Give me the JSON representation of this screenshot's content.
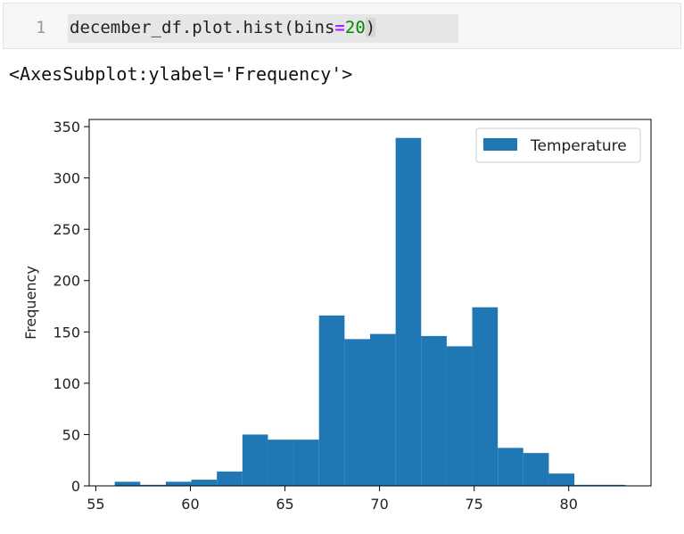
{
  "code_cell": {
    "line_number": "1",
    "code_parts": {
      "prefix": "december_df.plot.hist(bins",
      "equals": "=",
      "number": "20",
      "suffix": ")"
    }
  },
  "output": {
    "repr": "<AxesSubplot:ylabel='Frequency'>"
  },
  "colors": {
    "bar": "#1f77b4",
    "axis": "#000000",
    "code_equals": "#aa22ff",
    "code_number": "#008800"
  },
  "chart_data": {
    "type": "bar",
    "subtype": "histogram",
    "title": "",
    "xlabel": "",
    "ylabel": "Frequency",
    "xlim": [
      54.65,
      84.35
    ],
    "ylim": [
      0,
      357
    ],
    "x_ticks": [
      55,
      60,
      65,
      70,
      75,
      80
    ],
    "y_ticks": [
      0,
      50,
      100,
      150,
      200,
      250,
      300,
      350
    ],
    "bin_edges": [
      56,
      57.35,
      58.7,
      60.05,
      61.4,
      62.75,
      64.1,
      65.45,
      66.8,
      68.15,
      69.5,
      70.85,
      72.2,
      73.55,
      74.9,
      76.25,
      77.6,
      78.95,
      80.3,
      81.65,
      83
    ],
    "series": [
      {
        "name": "Temperature",
        "values": [
          4,
          1,
          4,
          6,
          14,
          50,
          45,
          45,
          166,
          143,
          148,
          339,
          146,
          136,
          174,
          37,
          32,
          12,
          1,
          1
        ]
      }
    ],
    "legend": {
      "position": "top-right",
      "entries": [
        "Temperature"
      ]
    },
    "grid": false
  }
}
